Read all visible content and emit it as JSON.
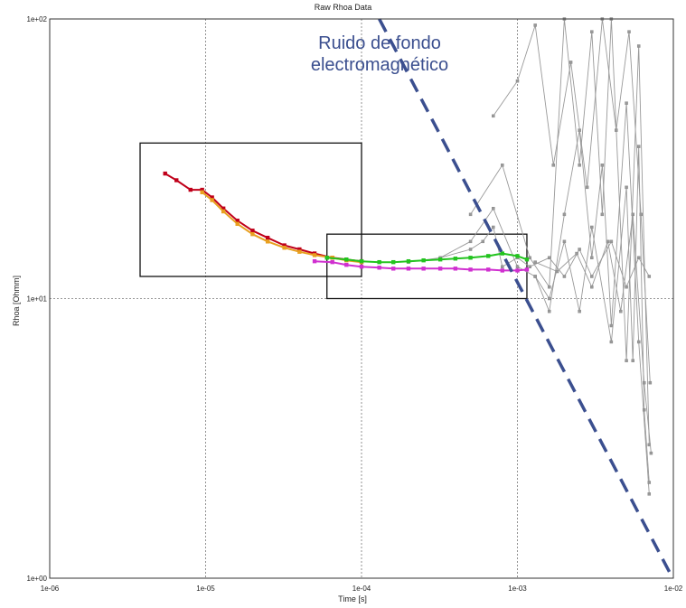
{
  "chart_data": {
    "type": "line",
    "title": "Raw Rhoa Data",
    "xlabel": "Time [s]",
    "ylabel": "Rhoa [Ohmm]",
    "xscale": "log",
    "yscale": "log",
    "xlim": [
      1e-06,
      0.01
    ],
    "ylim": [
      1,
      100
    ],
    "x_ticks": [
      "1e-06",
      "1e-05",
      "1e-04",
      "1e-03",
      "1e-02"
    ],
    "y_ticks": [
      "1e+00",
      "1e+01",
      "1e+02"
    ],
    "grid": true,
    "annotation": {
      "lines": [
        "Ruido de fondo",
        "electromagnético"
      ],
      "color": "#3b4f8f"
    },
    "noise_line": {
      "from": [
        0.00013,
        100
      ],
      "to": [
        0.0099,
        1
      ],
      "color": "#3b4f8f",
      "style": "dashed"
    },
    "boxes": [
      {
        "x": [
          3.8e-06,
          0.0001
        ],
        "y": [
          12,
          36
        ]
      },
      {
        "x": [
          6e-05,
          0.00115
        ],
        "y": [
          10,
          17
        ]
      }
    ],
    "series": [
      {
        "color": "#c0001a",
        "x": [
          5.5e-06,
          6.5e-06,
          8e-06,
          9.5e-06,
          1.1e-05,
          1.3e-05,
          1.6e-05,
          2e-05,
          2.5e-05,
          3.2e-05,
          4e-05,
          5e-05,
          6.5e-05,
          8e-05,
          0.0001
        ],
        "values": [
          28,
          26.5,
          24.5,
          24.5,
          23,
          21,
          19,
          17.5,
          16.5,
          15.5,
          15,
          14.5,
          14,
          13.8,
          13.6
        ]
      },
      {
        "color": "#e8a020",
        "x": [
          9.5e-06,
          1.1e-05,
          1.3e-05,
          1.6e-05,
          2e-05,
          2.5e-05,
          3.2e-05,
          4e-05,
          5e-05,
          6.5e-05,
          8e-05,
          0.0001
        ],
        "values": [
          24,
          22.5,
          20.5,
          18.5,
          17,
          16,
          15.2,
          14.7,
          14.3,
          14,
          13.7,
          13.5
        ]
      },
      {
        "color": "#22c31e",
        "x": [
          6e-05,
          8e-05,
          0.0001,
          0.00013,
          0.00016,
          0.0002,
          0.00025,
          0.00032,
          0.0004,
          0.0005,
          0.00065,
          0.0008,
          0.001,
          0.00115
        ],
        "values": [
          14,
          13.8,
          13.6,
          13.5,
          13.5,
          13.6,
          13.7,
          13.8,
          13.9,
          14,
          14.2,
          14.5,
          14.2,
          13.8
        ]
      },
      {
        "color": "#d030d0",
        "x": [
          5e-05,
          6.5e-05,
          8e-05,
          0.0001,
          0.00013,
          0.00016,
          0.0002,
          0.00025,
          0.00032,
          0.0004,
          0.0005,
          0.00065,
          0.0008,
          0.001,
          0.00115
        ],
        "values": [
          13.6,
          13.5,
          13.2,
          13,
          12.9,
          12.8,
          12.8,
          12.8,
          12.8,
          12.8,
          12.7,
          12.7,
          12.6,
          12.6,
          12.7
        ]
      },
      {
        "color": "#999999",
        "x": [
          0.0002,
          0.00032,
          0.0005,
          0.0006,
          0.0007,
          0.0008,
          0.001,
          0.0012,
          0.0016,
          0.002,
          0.0025,
          0.003,
          0.004,
          0.005,
          0.006,
          0.007
        ],
        "values": [
          13.5,
          14,
          15,
          16,
          18,
          13,
          14,
          13,
          14,
          12,
          15,
          12,
          16,
          11,
          14,
          12
        ]
      },
      {
        "color": "#999999",
        "x": [
          0.00032,
          0.0005,
          0.0007,
          0.001,
          0.0013,
          0.0016,
          0.002,
          0.0025,
          0.003,
          0.0035,
          0.004,
          0.005,
          0.006,
          0.007
        ],
        "values": [
          14,
          16,
          21,
          13,
          12,
          9,
          20,
          40,
          14,
          30,
          8,
          50,
          7,
          2
        ]
      },
      {
        "color": "#999999",
        "x": [
          0.0005,
          0.0008,
          0.0012,
          0.0016,
          0.002,
          0.0025,
          0.003,
          0.0035,
          0.004,
          0.005,
          0.006,
          0.007
        ],
        "values": [
          20,
          30,
          14,
          11,
          100,
          30,
          90,
          20,
          100,
          6,
          80,
          3
        ]
      },
      {
        "color": "#999999",
        "x": [
          0.0007,
          0.001,
          0.0013,
          0.0017,
          0.0022,
          0.0028,
          0.0035,
          0.0043,
          0.0052,
          0.0062,
          0.0071
        ],
        "values": [
          45,
          60,
          95,
          30,
          70,
          25,
          100,
          40,
          90,
          20,
          5
        ]
      },
      {
        "color": "#999999",
        "x": [
          0.0013,
          0.0016,
          0.002,
          0.0025,
          0.003,
          0.004,
          0.005,
          0.0055,
          0.006,
          0.0065,
          0.007
        ],
        "values": [
          12,
          10,
          16,
          9,
          18,
          7,
          25,
          6,
          35,
          4,
          2.2
        ]
      },
      {
        "color": "#999999",
        "x": [
          0.0013,
          0.0018,
          0.0024,
          0.003,
          0.0038,
          0.0046,
          0.0055,
          0.0065,
          0.0072
        ],
        "values": [
          13.5,
          12.5,
          14.5,
          11,
          16,
          9,
          20,
          5,
          2.8
        ]
      }
    ]
  }
}
